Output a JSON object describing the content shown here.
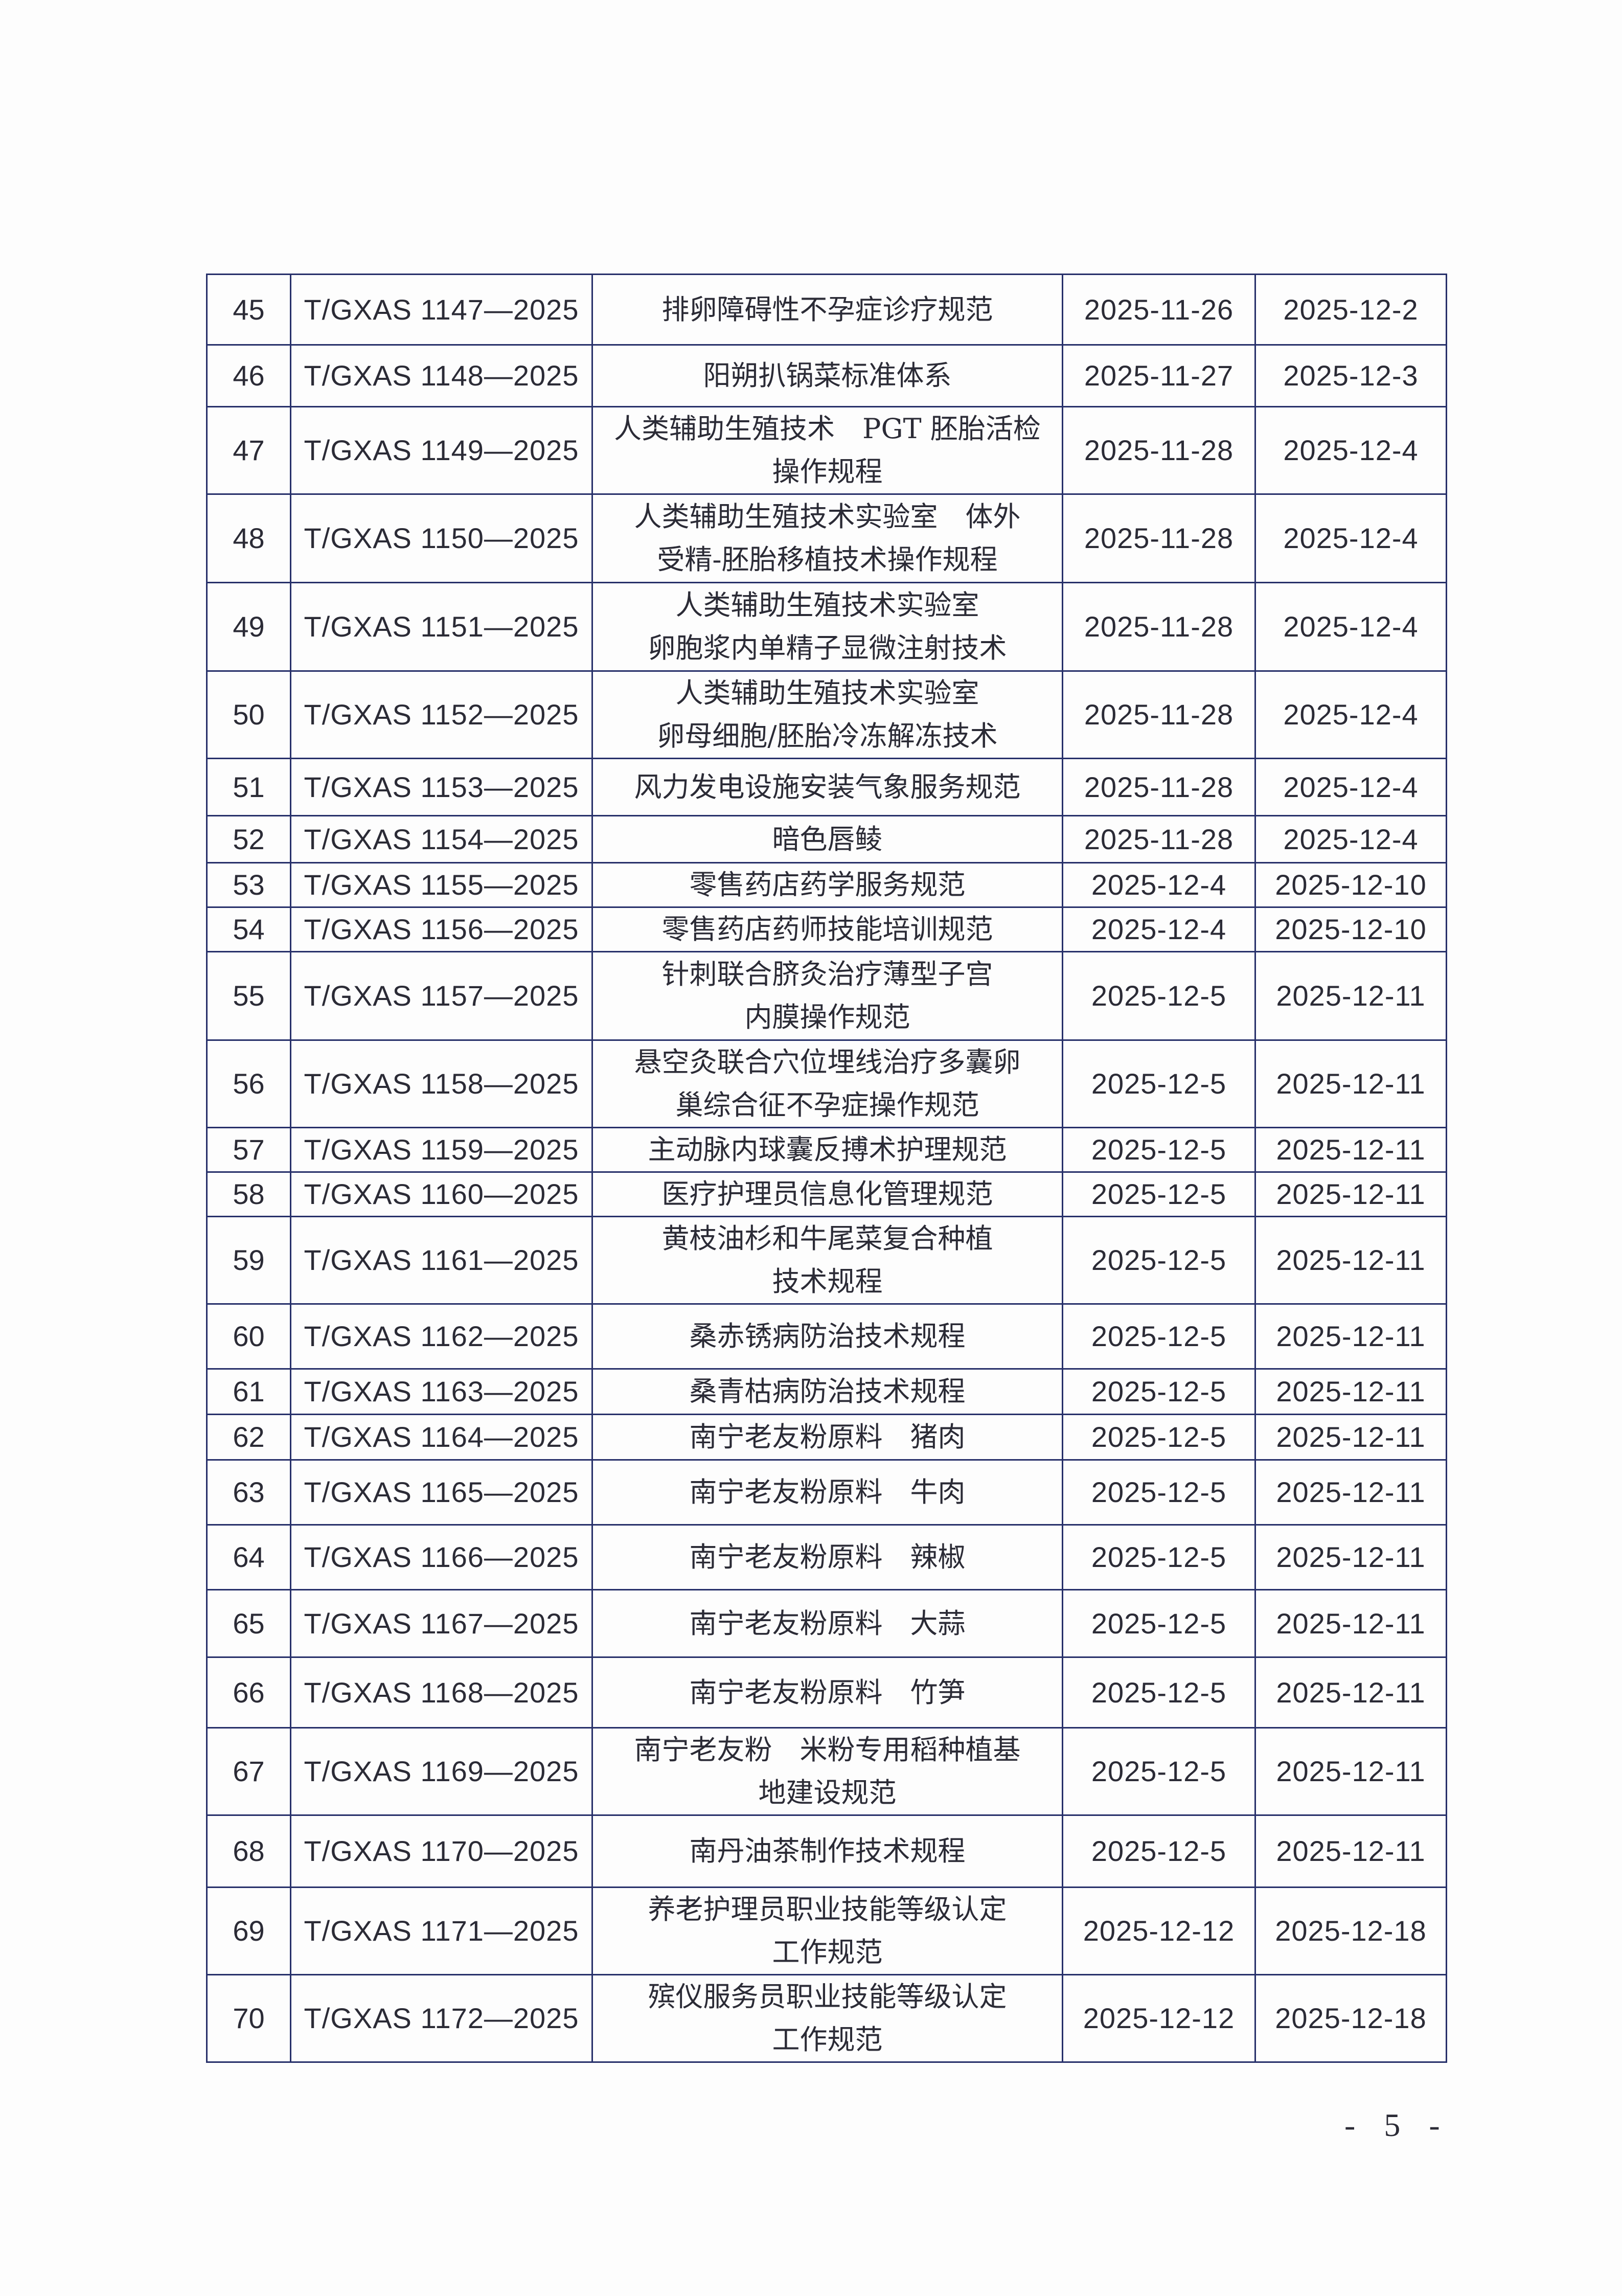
{
  "table": {
    "rows": [
      {
        "no": "45",
        "code": "T/GXAS 1147—2025",
        "name": [
          "排卵障碍性不孕症诊疗规范"
        ],
        "publish": "2025-11-26",
        "implement": "2025-12-2"
      },
      {
        "no": "46",
        "code": "T/GXAS 1148—2025",
        "name": [
          "阳朔扒锅菜标准体系"
        ],
        "publish": "2025-11-27",
        "implement": "2025-12-3"
      },
      {
        "no": "47",
        "code": "T/GXAS 1149—2025",
        "name": [
          "人类辅助生殖技术　PGT 胚胎活检",
          "操作规程"
        ],
        "publish": "2025-11-28",
        "implement": "2025-12-4"
      },
      {
        "no": "48",
        "code": "T/GXAS 1150—2025",
        "name": [
          "人类辅助生殖技术实验室　体外",
          "受精-胚胎移植技术操作规程"
        ],
        "publish": "2025-11-28",
        "implement": "2025-12-4"
      },
      {
        "no": "49",
        "code": "T/GXAS 1151—2025",
        "name": [
          "人类辅助生殖技术实验室",
          "卵胞浆内单精子显微注射技术"
        ],
        "publish": "2025-11-28",
        "implement": "2025-12-4"
      },
      {
        "no": "50",
        "code": "T/GXAS 1152—2025",
        "name": [
          "人类辅助生殖技术实验室",
          "卵母细胞/胚胎冷冻解冻技术"
        ],
        "publish": "2025-11-28",
        "implement": "2025-12-4"
      },
      {
        "no": "51",
        "code": "T/GXAS 1153—2025",
        "name": [
          "风力发电设施安装气象服务规范"
        ],
        "publish": "2025-11-28",
        "implement": "2025-12-4"
      },
      {
        "no": "52",
        "code": "T/GXAS 1154—2025",
        "name": [
          "暗色唇鲮"
        ],
        "publish": "2025-11-28",
        "implement": "2025-12-4"
      },
      {
        "no": "53",
        "code": "T/GXAS 1155—2025",
        "name": [
          "零售药店药学服务规范"
        ],
        "publish": "2025-12-4",
        "implement": "2025-12-10"
      },
      {
        "no": "54",
        "code": "T/GXAS 1156—2025",
        "name": [
          "零售药店药师技能培训规范"
        ],
        "publish": "2025-12-4",
        "implement": "2025-12-10"
      },
      {
        "no": "55",
        "code": "T/GXAS 1157—2025",
        "name": [
          "针刺联合脐灸治疗薄型子宫",
          "内膜操作规范"
        ],
        "publish": "2025-12-5",
        "implement": "2025-12-11"
      },
      {
        "no": "56",
        "code": "T/GXAS 1158—2025",
        "name": [
          "悬空灸联合穴位埋线治疗多囊卵",
          "巢综合征不孕症操作规范"
        ],
        "publish": "2025-12-5",
        "implement": "2025-12-11"
      },
      {
        "no": "57",
        "code": "T/GXAS 1159—2025",
        "name": [
          "主动脉内球囊反搏术护理规范"
        ],
        "publish": "2025-12-5",
        "implement": "2025-12-11"
      },
      {
        "no": "58",
        "code": "T/GXAS 1160—2025",
        "name": [
          "医疗护理员信息化管理规范"
        ],
        "publish": "2025-12-5",
        "implement": "2025-12-11"
      },
      {
        "no": "59",
        "code": "T/GXAS 1161—2025",
        "name": [
          "黄枝油杉和牛尾菜复合种植",
          "技术规程"
        ],
        "publish": "2025-12-5",
        "implement": "2025-12-11"
      },
      {
        "no": "60",
        "code": "T/GXAS 1162—2025",
        "name": [
          "桑赤锈病防治技术规程"
        ],
        "publish": "2025-12-5",
        "implement": "2025-12-11"
      },
      {
        "no": "61",
        "code": "T/GXAS 1163—2025",
        "name": [
          "桑青枯病防治技术规程"
        ],
        "publish": "2025-12-5",
        "implement": "2025-12-11"
      },
      {
        "no": "62",
        "code": "T/GXAS 1164—2025",
        "name": [
          "南宁老友粉原料　猪肉"
        ],
        "publish": "2025-12-5",
        "implement": "2025-12-11"
      },
      {
        "no": "63",
        "code": "T/GXAS 1165—2025",
        "name": [
          "南宁老友粉原料　牛肉"
        ],
        "publish": "2025-12-5",
        "implement": "2025-12-11"
      },
      {
        "no": "64",
        "code": "T/GXAS 1166—2025",
        "name": [
          "南宁老友粉原料　辣椒"
        ],
        "publish": "2025-12-5",
        "implement": "2025-12-11"
      },
      {
        "no": "65",
        "code": "T/GXAS 1167—2025",
        "name": [
          "南宁老友粉原料　大蒜"
        ],
        "publish": "2025-12-5",
        "implement": "2025-12-11"
      },
      {
        "no": "66",
        "code": "T/GXAS 1168—2025",
        "name": [
          "南宁老友粉原料　竹笋"
        ],
        "publish": "2025-12-5",
        "implement": "2025-12-11"
      },
      {
        "no": "67",
        "code": "T/GXAS 1169—2025",
        "name": [
          "南宁老友粉　米粉专用稻种植基",
          "地建设规范"
        ],
        "publish": "2025-12-5",
        "implement": "2025-12-11"
      },
      {
        "no": "68",
        "code": "T/GXAS 1170—2025",
        "name": [
          "南丹油茶制作技术规程"
        ],
        "publish": "2025-12-5",
        "implement": "2025-12-11"
      },
      {
        "no": "69",
        "code": "T/GXAS 1171—2025",
        "name": [
          "养老护理员职业技能等级认定",
          "工作规范"
        ],
        "publish": "2025-12-12",
        "implement": "2025-12-18"
      },
      {
        "no": "70",
        "code": "T/GXAS 1172—2025",
        "name": [
          "殡仪服务员职业技能等级认定",
          "工作规范"
        ],
        "publish": "2025-12-12",
        "implement": "2025-12-18"
      }
    ]
  },
  "footer": {
    "page_number": "- 5 -"
  }
}
